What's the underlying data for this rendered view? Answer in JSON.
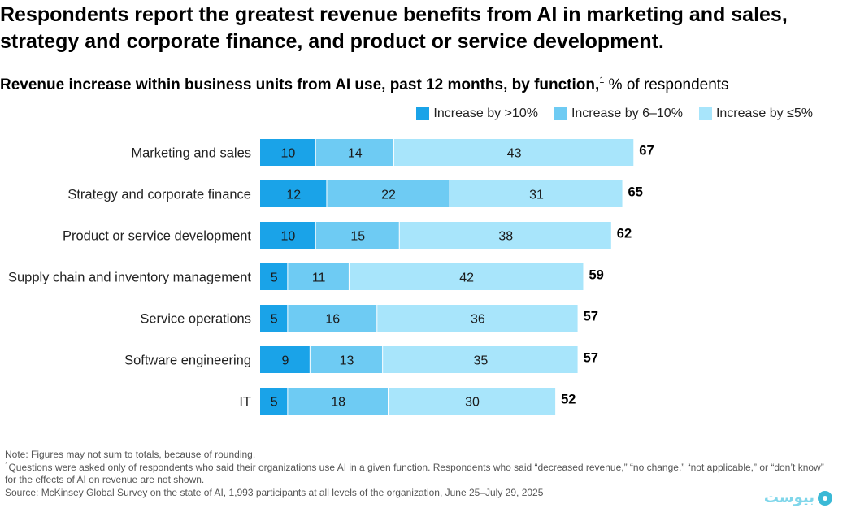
{
  "title": "Respondents report the greatest revenue benefits from AI in marketing and sales, strategy and corporate finance, and product or service development.",
  "subtitle": {
    "bold": "Revenue increase within business units from AI use, past 12 months, by function,",
    "footnote_mark": "1",
    "unit": " % of respondents"
  },
  "colors": {
    "gt10": "#1aa3e8",
    "s6to10": "#6ecbf3",
    "le5": "#a8e5fb"
  },
  "legend": [
    {
      "label": "Increase by >10%",
      "color": "#1aa3e8"
    },
    {
      "label": "Increase by 6–10%",
      "color": "#6ecbf3"
    },
    {
      "label": "Increase by ≤5%",
      "color": "#a8e5fb"
    }
  ],
  "chart_data": {
    "type": "bar",
    "orientation": "horizontal",
    "stacked": true,
    "categories": [
      "Marketing and sales",
      "Strategy and corporate finance",
      "Product or service development",
      "Supply chain and inventory management",
      "Service operations",
      "Software engineering",
      "IT"
    ],
    "series": [
      {
        "name": "Increase by >10%",
        "values": [
          10,
          12,
          10,
          5,
          5,
          9,
          5
        ]
      },
      {
        "name": "Increase by 6–10%",
        "values": [
          14,
          22,
          15,
          11,
          16,
          13,
          18
        ]
      },
      {
        "name": "Increase by ≤5%",
        "values": [
          43,
          31,
          38,
          42,
          36,
          35,
          30
        ]
      }
    ],
    "totals": [
      67,
      65,
      62,
      59,
      57,
      57,
      52
    ]
  },
  "notes": {
    "note": "Note: Figures may not sum to totals, because of rounding.",
    "footnote_mark": "1",
    "footnote": "Questions were asked only of respondents who said their organizations use AI in a given function. Respondents who said “decreased revenue,” “no change,” “not applicable,” or “don’t know” for the effects of AI on revenue are not shown.",
    "source": "Source: McKinsey Global Survey on the state of AI, 1,993 participants at all levels of the organization, June 25–July 29, 2025"
  },
  "logo_text": "بیوست"
}
